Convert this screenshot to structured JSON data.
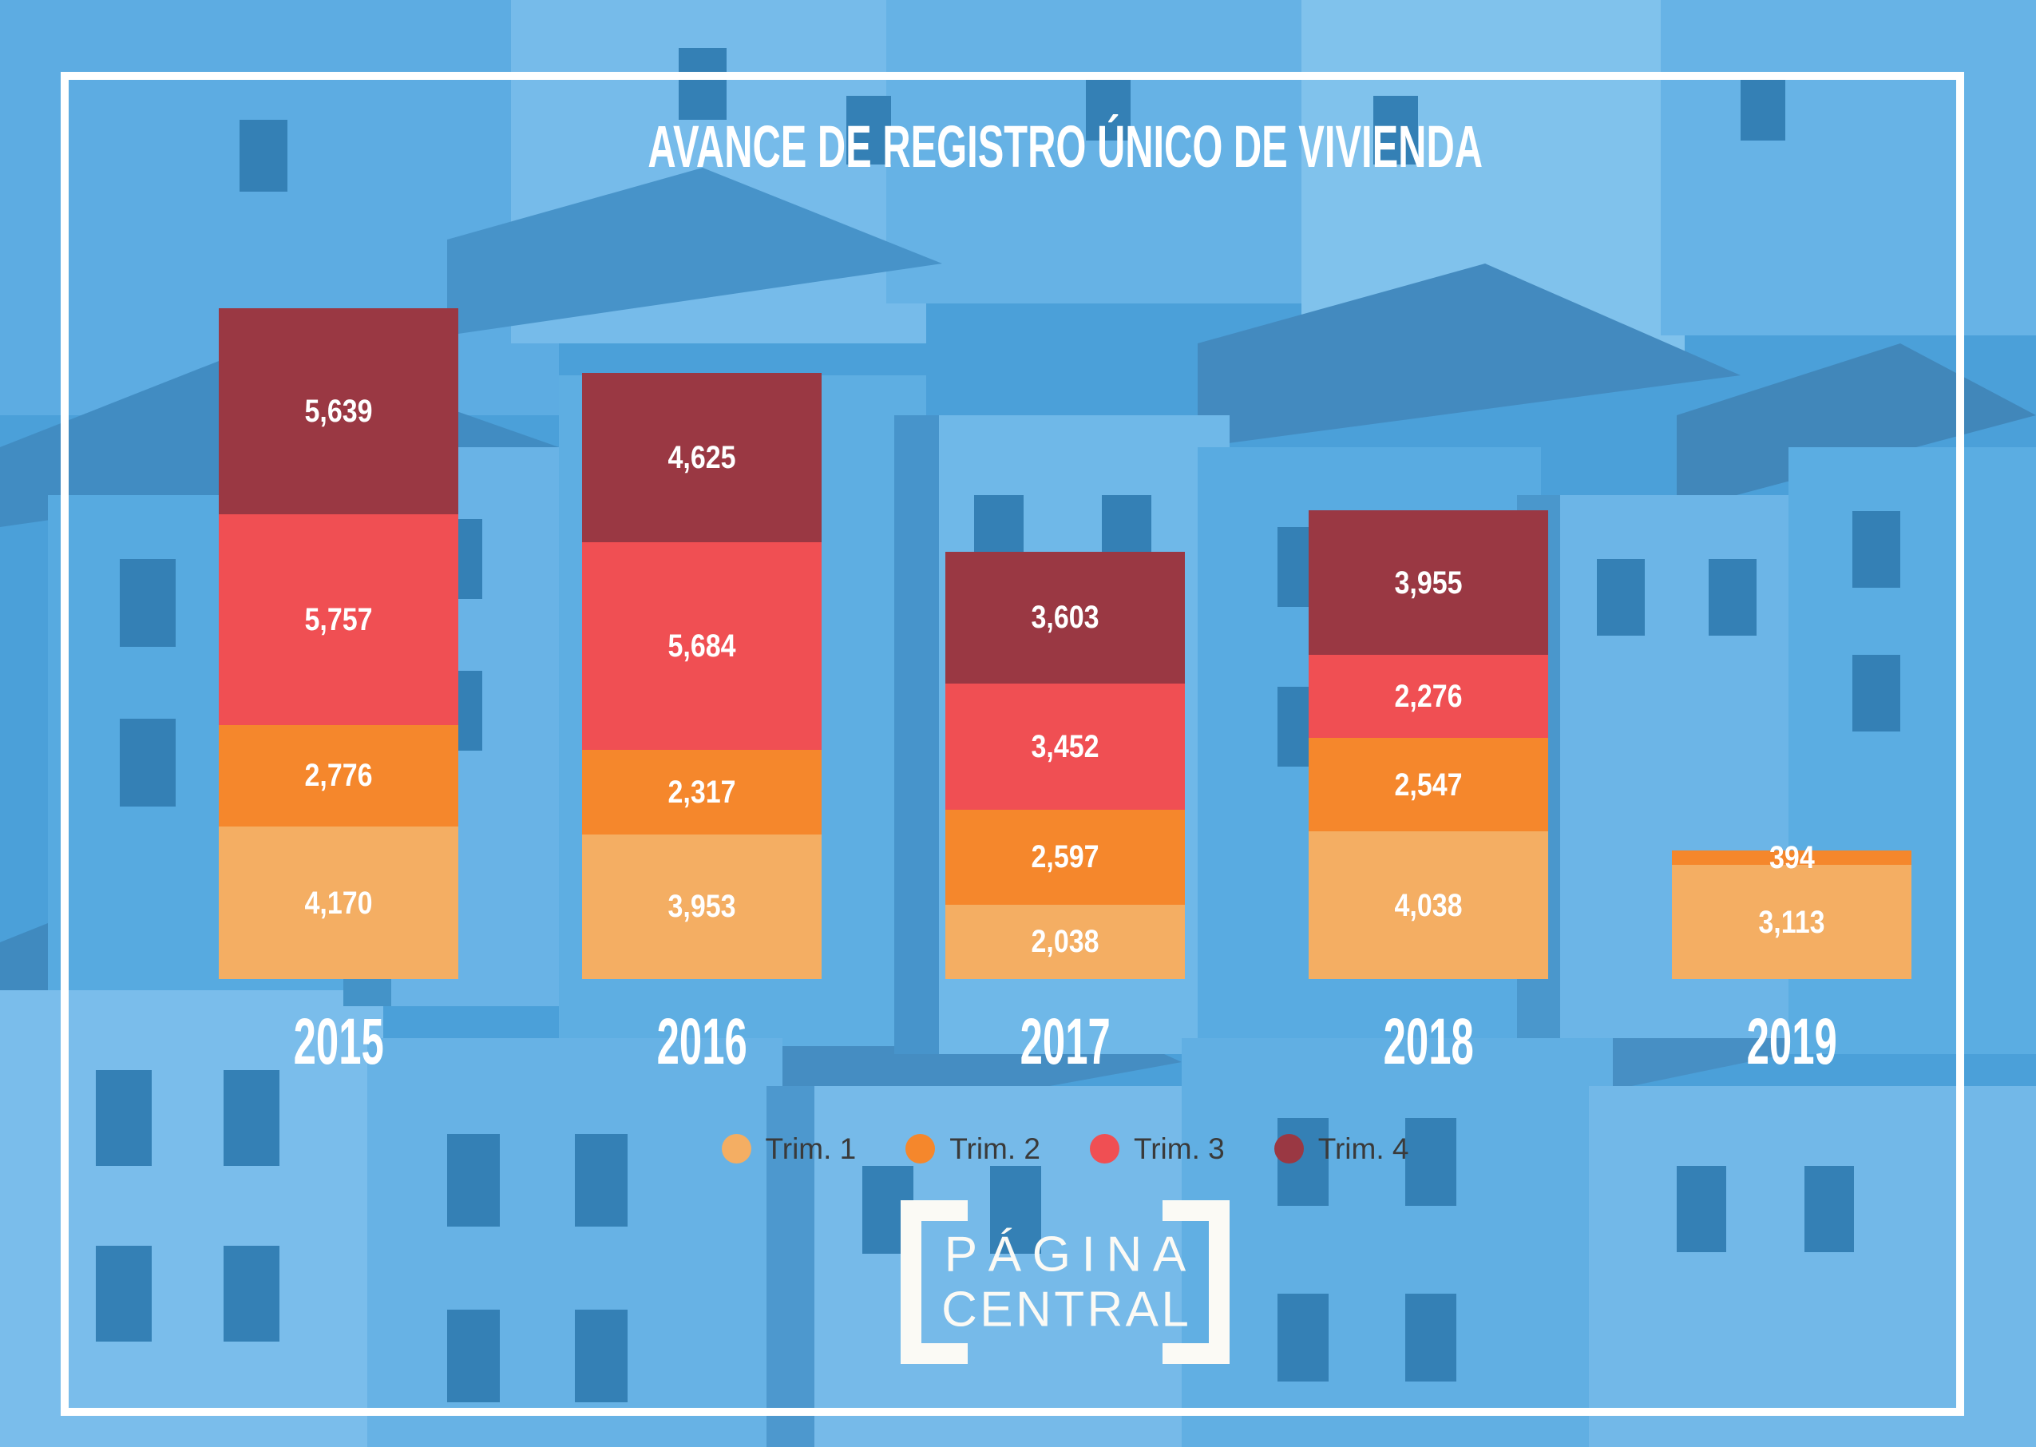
{
  "title": "AVANCE DE REGISTRO ÚNICO DE VIVIENDA",
  "chart_data": {
    "type": "bar",
    "stacked": true,
    "orientation": "vertical",
    "categories": [
      "2015",
      "2016",
      "2017",
      "2018",
      "2019"
    ],
    "series": [
      {
        "name": "Trim. 1",
        "color": "#f4ae63",
        "values": [
          4170,
          3953,
          2038,
          4038,
          3113
        ]
      },
      {
        "name": "Trim. 2",
        "color": "#f5872c",
        "values": [
          2776,
          2317,
          2597,
          2547,
          394
        ]
      },
      {
        "name": "Trim. 3",
        "color": "#f04f53",
        "values": [
          5757,
          5684,
          3452,
          2276,
          0
        ]
      },
      {
        "name": "Trim. 4",
        "color": "#9a3843",
        "values": [
          5639,
          4625,
          3603,
          3955,
          0
        ]
      }
    ],
    "totals": [
      18342,
      16579,
      11690,
      12816,
      3507
    ],
    "value_label_format": "thousands-comma",
    "axes": "none",
    "grid": false,
    "legend_position": "bottom",
    "legend_marker": "circle"
  },
  "legend": {
    "items": [
      {
        "label": "Trim. 1",
        "color": "#f4ae63"
      },
      {
        "label": "Trim. 2",
        "color": "#f5872c"
      },
      {
        "label": "Trim. 3",
        "color": "#f04f53"
      },
      {
        "label": "Trim. 4",
        "color": "#9a3843"
      }
    ]
  },
  "logo": {
    "line1": "PÁGINA",
    "line2": "CENTRAL"
  },
  "colors": {
    "background_blue": "#4ba0da",
    "frame_white": "#ffffff",
    "text_white": "#ffffff",
    "legend_text": "#3a3a3a"
  }
}
